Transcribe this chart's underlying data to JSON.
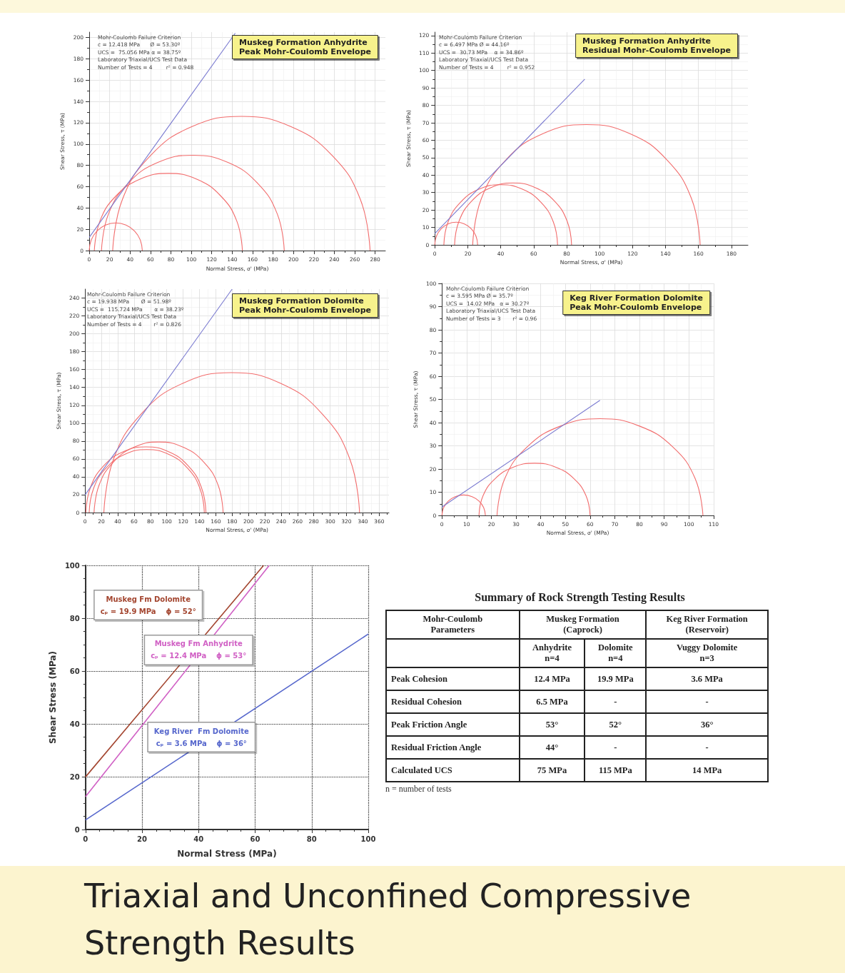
{
  "chart_data": [
    {
      "type": "line",
      "title": "Muskeg Formation Anhydrite",
      "subtitle": "Peak Mohr-Coulomb Envelope",
      "xlabel": "Normal Stress, σ' (MPa)",
      "ylabel": "Shear Stress, τ (MPa)",
      "xlim": [
        0,
        290
      ],
      "ylim": [
        0,
        205
      ],
      "xticks": [
        0,
        20,
        40,
        60,
        80,
        100,
        120,
        140,
        160,
        180,
        200,
        220,
        240,
        260,
        280
      ],
      "yticks": [
        0,
        20,
        40,
        60,
        80,
        100,
        120,
        140,
        160,
        180,
        200
      ],
      "grid": true,
      "annotations": [
        "Mohr-Coulomb Failure Criterion",
        "c = 12.418 MPa      Ø = 53.30º",
        "UCS =  75.056 MPa α = 38.75º",
        "Laboratory Triaxial/UCS Test Data",
        "Number of Tests = 4        r² = 0.948"
      ],
      "series": [
        {
          "color": "#f26d6d",
          "x": [
            0,
            2.0,
            7.6,
            16.0,
            26,
            36.0,
            44.4,
            50.0,
            52
          ],
          "values": [
            0,
            10.0,
            18.4,
            24.0,
            26,
            24.0,
            18.4,
            10.0,
            0
          ]
        },
        {
          "color": "#f26d6d",
          "x": [
            5,
            10.5,
            26.2,
            49.7,
            77.5,
            105.3,
            128.8,
            144.5,
            150
          ],
          "values": [
            0,
            27.8,
            51.3,
            67.0,
            72.5,
            67.0,
            51.3,
            27.8,
            0
          ]
        },
        {
          "color": "#f26d6d",
          "x": [
            12,
            18.8,
            38.2,
            67.2,
            101.5,
            135.8,
            164.8,
            184.2,
            191
          ],
          "values": [
            0,
            34.3,
            63.3,
            82.7,
            89.5,
            82.7,
            63.3,
            34.3,
            0
          ]
        },
        {
          "color": "#f26d6d",
          "x": [
            23,
            32.6,
            59.9,
            100.7,
            149,
            197.3,
            238.1,
            265.4,
            275
          ],
          "values": [
            0,
            48.3,
            89.1,
            116.4,
            126,
            116.4,
            89.1,
            48.3,
            0
          ]
        },
        {
          "color": "#7a7ad0",
          "x": [
            0,
            143
          ],
          "values": [
            12.4,
            204
          ]
        }
      ]
    },
    {
      "type": "line",
      "title": "Muskeg Formation Anhydrite",
      "subtitle": "Residual Mohr-Coulomb Envelope",
      "xlabel": "Normal Stress, σ' (MPa)",
      "ylabel": "Shear Stress, τ (MPa)",
      "xlim": [
        0,
        190
      ],
      "ylim": [
        0,
        122
      ],
      "xticks": [
        0,
        20,
        40,
        60,
        80,
        100,
        120,
        140,
        160,
        180
      ],
      "yticks": [
        0,
        10,
        20,
        30,
        40,
        50,
        60,
        70,
        80,
        90,
        100,
        110,
        120
      ],
      "grid": true,
      "annotations": [
        "Mohr-Coulomb Failure Criterion",
        "c = 6.497 MPa Ø = 44.16º",
        "UCS =  30.73 MPa    α = 34.86º",
        "Laboratory Triaxial/UCS Test Data",
        "Number of Tests = 4        r² = 0.952"
      ],
      "series": [
        {
          "color": "#f26d6d",
          "x": [
            0,
            1.0,
            3.8,
            8.0,
            13,
            18.0,
            22.2,
            25.0,
            26
          ],
          "values": [
            0,
            5.0,
            9.2,
            12.0,
            13,
            12.0,
            9.2,
            5.0,
            0
          ]
        },
        {
          "color": "#f26d6d",
          "x": [
            5.5,
            8.1,
            15.6,
            26.8,
            40,
            53.2,
            64.4,
            71.9,
            74.5
          ],
          "values": [
            0,
            13.2,
            24.4,
            31.9,
            34.5,
            31.9,
            24.4,
            13.2,
            0
          ]
        },
        {
          "color": "#f26d6d",
          "x": [
            12,
            14.7,
            22.4,
            33.9,
            47.5,
            61.1,
            72.6,
            80.3,
            83
          ],
          "values": [
            0,
            13.6,
            25.1,
            32.8,
            35.5,
            32.8,
            25.1,
            13.6,
            0
          ]
        },
        {
          "color": "#f26d6d",
          "x": [
            23,
            28.2,
            43.2,
            65.6,
            92,
            118.4,
            140.8,
            155.8,
            161
          ],
          "values": [
            0,
            26.4,
            48.8,
            63.8,
            69,
            63.8,
            48.8,
            26.4,
            0
          ]
        },
        {
          "color": "#7a7ad0",
          "x": [
            0,
            91
          ],
          "values": [
            6.5,
            95
          ]
        }
      ]
    },
    {
      "type": "line",
      "title": "Muskeg Formation Dolomite",
      "subtitle": "Peak Mohr-Coulomb Envelope",
      "xlabel": "Normal Stress, σ' (MPa)",
      "ylabel": "Shear Stress, τ (MPa)",
      "xlim": [
        0,
        372
      ],
      "ylim": [
        0,
        250
      ],
      "xticks": [
        0,
        20,
        40,
        60,
        80,
        100,
        120,
        140,
        160,
        180,
        200,
        220,
        240,
        260,
        280,
        300,
        320,
        340,
        360
      ],
      "yticks": [
        0,
        20,
        40,
        60,
        80,
        100,
        120,
        140,
        160,
        180,
        200,
        220,
        240
      ],
      "grid": true,
      "annotations": [
        "Mohr-Coulomb Failure Criterion",
        "c = 19.938 MPa       Ø = 51.98º",
        "UCS =  115.724 MPa       α = 38.23º",
        "Laboratory Triaxial/UCS Test Data",
        "Number of Tests = 4       r² = 0.826"
      ],
      "series": [
        {
          "color": "#f26d6d",
          "x": [
            5,
            10.4,
            25.7,
            48.5,
            75.5,
            102.5,
            125.3,
            140.6,
            146
          ],
          "values": [
            0,
            27.0,
            49.8,
            65.1,
            70.5,
            65.1,
            49.8,
            27.0,
            0
          ]
        },
        {
          "color": "#f26d6d",
          "x": [
            1,
            6.6,
            22.5,
            46.3,
            74.5,
            102.7,
            126.5,
            142.4,
            148
          ],
          "values": [
            0,
            28.2,
            52.0,
            67.9,
            73.5,
            67.9,
            52.0,
            28.2,
            0
          ]
        },
        {
          "color": "#f26d6d",
          "x": [
            11,
            17.0,
            34.1,
            59.7,
            90,
            120.3,
            145.9,
            163.0,
            169
          ],
          "values": [
            0,
            30.3,
            55.9,
            73.0,
            79,
            73.0,
            55.9,
            30.3,
            0
          ]
        },
        {
          "color": "#f26d6d",
          "x": [
            23,
            34.9,
            68.9,
            119.6,
            179.5,
            239.4,
            290.1,
            324.1,
            336
          ],
          "values": [
            0,
            59.9,
            110.6,
            144.6,
            156.5,
            144.6,
            110.6,
            59.9,
            0
          ]
        },
        {
          "color": "#7a7ad0",
          "x": [
            0,
            180
          ],
          "values": [
            19.9,
            250
          ]
        }
      ]
    },
    {
      "type": "line",
      "title": "Keg River Formation Dolomite",
      "subtitle": "Peak Mohr-Coulomb Envelope",
      "xlabel": "Normal Stress, σ' (MPa)",
      "ylabel": "Shear Stress, τ (MPa)",
      "xlim": [
        0,
        110
      ],
      "ylim": [
        0,
        100
      ],
      "xticks": [
        0,
        10,
        20,
        30,
        40,
        50,
        60,
        70,
        80,
        90,
        100,
        110
      ],
      "yticks": [
        0,
        10,
        20,
        30,
        40,
        50,
        60,
        70,
        80,
        90,
        100
      ],
      "grid": true,
      "annotations": [
        "Mohr-Coulomb Failure Criterion",
        "c = 3.595 MPa Ø = 35.7º",
        "UCS =  14.02 MPa   α = 30.27º",
        "Laboratory Triaxial/UCS Test Data",
        "Number of Tests = 3       r² = 0.96"
      ],
      "series": [
        {
          "color": "#f26d6d",
          "x": [
            0,
            0.7,
            2.6,
            5.4,
            8.8,
            12.2,
            15.0,
            16.9,
            17.6
          ],
          "values": [
            0,
            3.4,
            6.2,
            8.1,
            8.8,
            8.1,
            6.2,
            3.4,
            0
          ]
        },
        {
          "color": "#f26d6d",
          "x": [
            15,
            16.7,
            21.6,
            28.9,
            37.5,
            46.1,
            53.4,
            58.3,
            60
          ],
          "values": [
            0,
            8.6,
            15.9,
            20.8,
            22.5,
            20.8,
            15.9,
            8.6,
            0
          ]
        },
        {
          "color": "#f26d6d",
          "x": [
            22.3,
            25.5,
            34.5,
            48.0,
            64,
            80.0,
            93.5,
            102.5,
            105.7
          ],
          "values": [
            0,
            16.0,
            29.5,
            38.5,
            41.7,
            38.5,
            29.5,
            16.0,
            0
          ]
        },
        {
          "color": "#7a7ad0",
          "x": [
            0,
            64
          ],
          "values": [
            3.6,
            49.6
          ]
        }
      ]
    },
    {
      "type": "line",
      "xlabel": "Normal Stress (MPa)",
      "ylabel": "Shear Stress (MPa)",
      "xlim": [
        0,
        100
      ],
      "ylim": [
        0,
        100
      ],
      "xticks": [
        0,
        20,
        40,
        60,
        80,
        100
      ],
      "yticks": [
        0,
        20,
        40,
        60,
        80,
        100
      ],
      "grid": true,
      "annotations": [
        "cₚ = 19.9 MPa    ϕ = 52°",
        "cₚ = 12.4 MPa    ϕ = 53°",
        "cₚ = 3.6 MPa    ϕ = 36°"
      ],
      "series": [
        {
          "name": "Muskeg Fm Dolomite",
          "color": "#a3452f",
          "x": [
            0,
            63
          ],
          "values": [
            19.9,
            100
          ]
        },
        {
          "name": "Muskeg Fm Anhydrite",
          "color": "#d05fc4",
          "x": [
            0,
            65
          ],
          "values": [
            12.4,
            100
          ]
        },
        {
          "name": "Keg River  Fm Dolomite",
          "color": "#5566cc",
          "x": [
            0,
            100
          ],
          "values": [
            3.6,
            74
          ]
        }
      ]
    },
    {
      "type": "other",
      "title": "Summary of Rock Strength Testing Results",
      "annotations": [
        "Mohr-Coulomb\nParameters",
        "Muskeg Formation\n(Caprock)",
        "Keg River Formation\n(Reservoir)",
        "Anhydrite\nn=4",
        "Dolomite\nn=4",
        "Vuggy Dolomite\nn=3",
        "Peak Cohesion",
        "12.4 MPa",
        "19.9 MPa",
        "3.6 MPa",
        "Residual Cohesion",
        "6.5 MPa",
        "-",
        "-",
        "Peak Friction Angle",
        "53°",
        "52°",
        "36°",
        "Residual Friction Angle",
        "44°",
        "-",
        "-",
        "Calculated UCS",
        "75 MPa",
        "115 MPa",
        "14 MPa",
        "n = number of tests"
      ]
    },
    {
      "type": "other",
      "title": "Triaxial and Unconfined Compressive Strength Results"
    }
  ]
}
